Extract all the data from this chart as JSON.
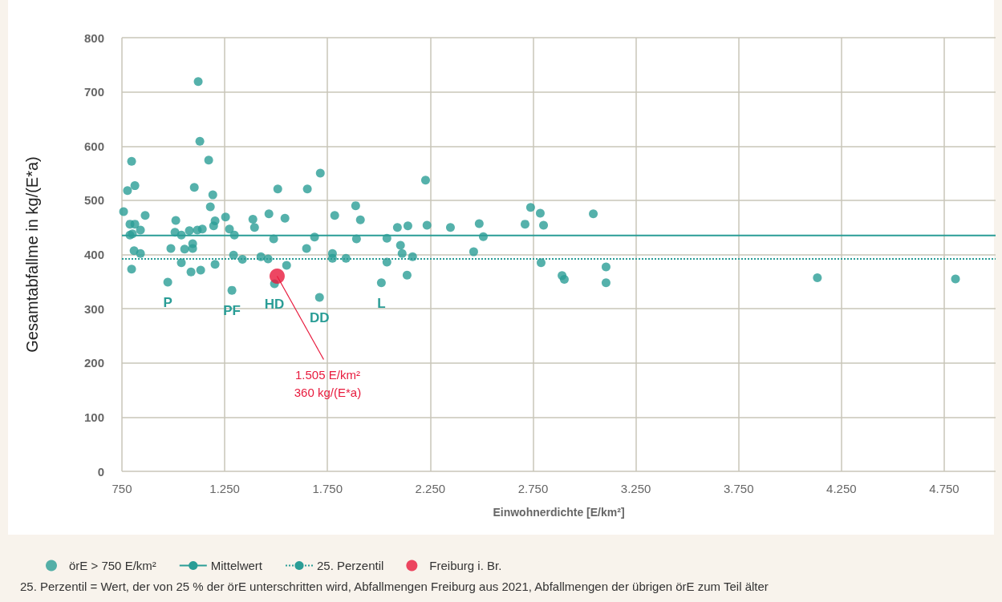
{
  "chart_data": {
    "type": "scatter",
    "xlabel": "Einwohnerdichte [E/km²]",
    "ylabel": "Gesamtabfallme in kg/(E*a)",
    "xlim": [
      750,
      5000
    ],
    "ylim": [
      0,
      800
    ],
    "xticks": [
      750,
      {
        "value": 1250,
        "label": "1.250"
      },
      {
        "value": 1750,
        "label": "1.750"
      },
      {
        "value": 2250,
        "label": "2.250"
      },
      {
        "value": 2750,
        "label": "2.750"
      },
      {
        "value": 3250,
        "label": "3.250"
      },
      {
        "value": 3750,
        "label": "3.750"
      },
      {
        "value": 4250,
        "label": "4.250"
      },
      {
        "value": 4750,
        "label": "4.750"
      }
    ],
    "yticks": [
      0,
      100,
      200,
      300,
      400,
      500,
      600,
      700,
      800
    ],
    "grid": true,
    "legend": "bottom",
    "marker": "circle",
    "series": [
      {
        "name": "örE > 750 E/km²",
        "color": "#2a9d96",
        "x": [
          758,
          777,
          797,
          813,
          789,
          801,
          789,
          813,
          840,
          863,
          809,
          840,
          797,
          973,
          988,
          1012,
          1008,
          1039,
          1039,
          1055,
          1078,
          1086,
          1094,
          1094,
          1102,
          1117,
          1121,
          1129,
          1133,
          1141,
          1172,
          1180,
          1192,
          1196,
          1203,
          1203,
          1254,
          1273,
          1297,
          1293,
          1285,
          1336,
          1387,
          1395,
          1426,
          1461,
          1465,
          1488,
          1508,
          1492,
          1543,
          1551,
          1648,
          1652,
          1687,
          1715,
          1711,
          1774,
          1774,
          1785,
          1840,
          1887,
          1891,
          1910,
          2012,
          2039,
          2039,
          2090,
          2105,
          2113,
          2137,
          2141,
          2164,
          2227,
          2234,
          2348,
          2461,
          2488,
          2508,
          2711,
          2738,
          2785,
          2789,
          2801,
          2891,
          2902,
          3043,
          3105,
          3105,
          4133,
          4805
        ],
        "values": [
          479,
          518,
          572,
          527,
          436,
          438,
          456,
          456,
          445,
          472,
          407,
          402,
          373,
          349,
          411,
          463,
          441,
          436,
          385,
          410,
          444,
          368,
          420,
          411,
          524,
          445,
          719,
          609,
          371,
          447,
          574,
          488,
          510,
          453,
          462,
          382,
          469,
          447,
          436,
          399,
          334,
          391,
          465,
          450,
          396,
          392,
          475,
          429,
          521,
          346,
          467,
          380,
          411,
          521,
          432,
          550,
          321,
          402,
          393,
          472,
          393,
          490,
          429,
          464,
          348,
          430,
          386,
          450,
          417,
          402,
          362,
          453,
          396,
          537,
          454,
          450,
          405,
          457,
          433,
          456,
          487,
          476,
          385,
          454,
          361,
          354,
          475,
          377,
          348,
          357,
          355
        ]
      },
      {
        "name": "Freiburg i. Br.",
        "color": "#e8193c",
        "x": [
          1505
        ],
        "values": [
          360
        ]
      }
    ],
    "ref_lines": [
      {
        "axis": "y",
        "value": 435,
        "label": "Mittelwert",
        "color": "#2a9d96",
        "line_style": "solid"
      },
      {
        "axis": "y",
        "value": 392,
        "label": "25. Perzentil",
        "color": "#2a9d96",
        "line_style": "dotted"
      }
    ],
    "annotations": [
      {
        "text": "P",
        "x": 973,
        "y": 349
      },
      {
        "text": "PF",
        "x": 1285,
        "y": 334
      },
      {
        "text": "HD",
        "x": 1492,
        "y": 346
      },
      {
        "text": "DD",
        "x": 1711,
        "y": 321
      },
      {
        "text": "L",
        "x": 2012,
        "y": 348
      },
      {
        "text": "1.505 E/km²\n360 kg/(E*a)",
        "x": 1505,
        "y": 360
      },
      "25. Perzentil = Wert, der von 25 % der örE unterschritten wird, Abfallmengen Freiburg aus 2021, Abfallmengen der übrigen örE zum Teil älter"
    ]
  }
}
